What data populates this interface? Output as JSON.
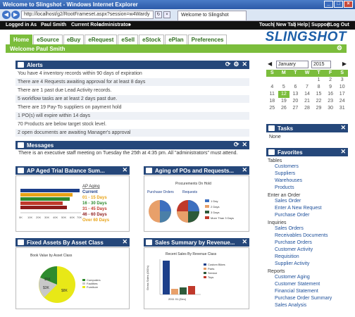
{
  "window": {
    "title": "Welcome to Slingshot - Windows Internet Explorer",
    "url": "http://localhost/g2/RootFrameset.aspx?session=w4Wardy",
    "tab_title": "Welcome to Slingshot"
  },
  "appbar": {
    "logged_in_label": "Logged in As",
    "user": "Paul Smith",
    "role_label": "Current Role",
    "role": "administrator",
    "links": [
      "Touch",
      "New Tab",
      "Help",
      "Support",
      "Log Out"
    ]
  },
  "brand": {
    "logo": "SLINGSHOT"
  },
  "tabs": [
    "Home",
    "eSource",
    "eBuy",
    "eRequest",
    "eSell",
    "eStock",
    "ePlan",
    "Preferences"
  ],
  "welcome": "Welcome Paul Smith",
  "alerts": {
    "title": "Alerts",
    "rows": [
      "You have 4 inventory records within 90 days of expiration",
      "There are 4 Requests awaiting approval for at least 8 days",
      "There are 1 past due Lead Activity records.",
      "5 workflow tasks are at least 2 days past due.",
      "There are 19 Pay-To suppliers on payment hold",
      "1 PO(s) will expire within 14 days",
      "70 Products are below target stock level.",
      "2 open documents are awaiting Manager's approval"
    ]
  },
  "messages": {
    "title": "Messages",
    "text": "There is an executive staff meeting on Tuesday the 25th at 4:35 pm. All \"administrators\" must attend."
  },
  "ap_aging": {
    "title": "AP Aged Trial Balance Sum...",
    "legend_title": "AP Aging",
    "legend": [
      {
        "label": "Current",
        "color": "#1d3f8a"
      },
      {
        "label": "01 - 15 Days",
        "color": "#e8a317"
      },
      {
        "label": "16 - 30 Days",
        "color": "#2e8b2e"
      },
      {
        "label": "31 - 45 Days",
        "color": "#c0392b"
      },
      {
        "label": "46 - 60 Days",
        "color": "#8e1c1c"
      },
      {
        "label": "Over 60 Days",
        "color": "#e8a317"
      }
    ],
    "ticks": [
      "0K",
      "10K",
      "20K",
      "30K",
      "40K",
      "50K",
      "60K",
      "70K"
    ]
  },
  "po_aging": {
    "title": "Aging of POs and Requests...",
    "chart_title": "Procurements On Hold",
    "sub_left": "Purchase Orders",
    "sub_right": "Requests",
    "legend": [
      "1 Day",
      "2 Days",
      "3 Days",
      "More Than 3 Days"
    ]
  },
  "fixed_assets": {
    "title": "Fixed Assets By Asset Class",
    "chart_title": "Book Value by Asset Class",
    "labels": [
      "$5K",
      "$3K",
      "$8K"
    ],
    "legend": [
      "Computers",
      "Facilities",
      "Furniture"
    ]
  },
  "sales_summary": {
    "title": "Sales Summary by Revenue...",
    "chart_title": "Recent Sales By Revenue Class",
    "ylabel": "Gross Sales (000's)",
    "xlabel": "2011 01 (Dec)",
    "legend": [
      "Custom Bikes",
      "Parts",
      "Service",
      "Toys"
    ]
  },
  "calendar": {
    "month": "January",
    "year": "2015",
    "day_headers": [
      "S",
      "M",
      "T",
      "W",
      "T",
      "F",
      "S"
    ],
    "days": [
      "",
      "",
      "",
      "",
      "1",
      "2",
      "3",
      "4",
      "5",
      "6",
      "7",
      "8",
      "9",
      "10",
      "11",
      "12",
      "13",
      "14",
      "15",
      "16",
      "17",
      "18",
      "19",
      "20",
      "21",
      "22",
      "23",
      "24",
      "25",
      "26",
      "27",
      "28",
      "29",
      "30",
      "31"
    ],
    "today": "12"
  },
  "tasks": {
    "title": "Tasks",
    "text": "None"
  },
  "favorites": {
    "title": "Favorites",
    "sections": [
      {
        "name": "Tables",
        "items": [
          "Customers",
          "Suppliers",
          "Warehouses",
          "Products"
        ]
      },
      {
        "name": "Enter an Order",
        "items": [
          "Sales Order",
          "Enter A New Request",
          "Purchase Order"
        ]
      },
      {
        "name": "Inquiries",
        "items": [
          "Sales Orders",
          "Receivables Documents",
          "Purchase Orders",
          "Customer Activity",
          "Requisition",
          "Supplier Activity"
        ]
      },
      {
        "name": "Reports",
        "items": [
          "Customer Aging",
          "Customer Statement",
          "Financial Statement",
          "Purchase Order Summary",
          "Sales Analysis"
        ]
      }
    ]
  }
}
